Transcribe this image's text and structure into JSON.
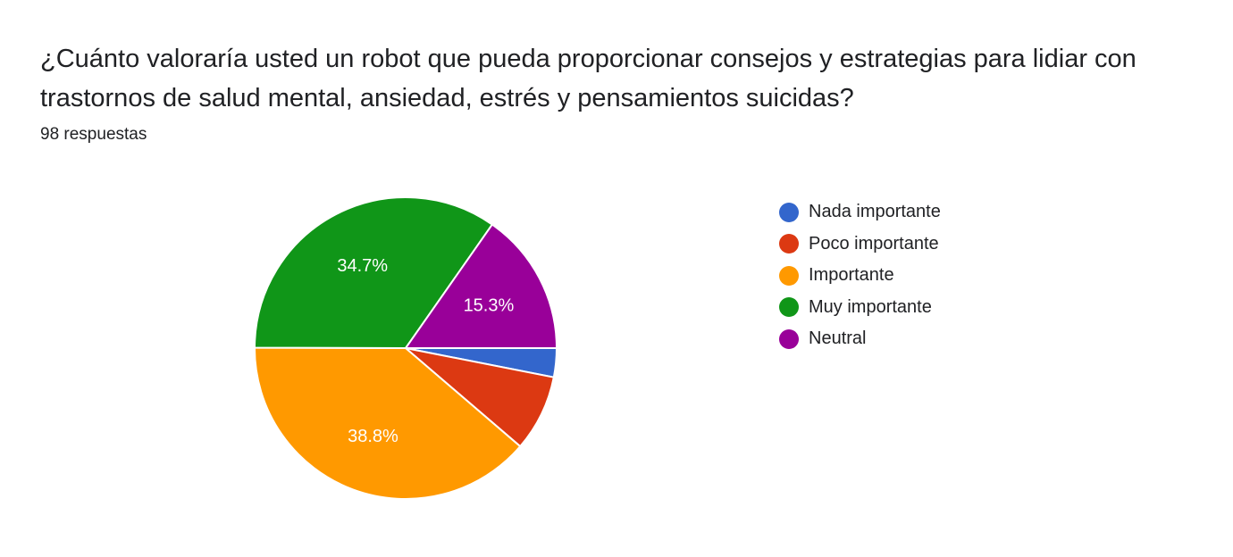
{
  "question": {
    "title": "¿Cuánto valoraría usted un robot que pueda proporcionar consejos y estrategias para lidiar con trastornos de salud mental, ansiedad, estrés y pensamientos suicidas?",
    "responses": "98 respuestas"
  },
  "chart_data": {
    "type": "pie",
    "categories": [
      "Nada importante",
      "Poco importante",
      "Importante",
      "Muy importante",
      "Neutral"
    ],
    "values": [
      3.1,
      8.2,
      38.8,
      34.7,
      15.3
    ],
    "labels": [
      "",
      "",
      "38.8%",
      "34.7%",
      "15.3%"
    ],
    "colors": [
      "#3366cc",
      "#dc3912",
      "#ff9900",
      "#109618",
      "#990099"
    ],
    "legend_position": "right",
    "start_angle": "3 o'clock",
    "direction": "clockwise"
  }
}
